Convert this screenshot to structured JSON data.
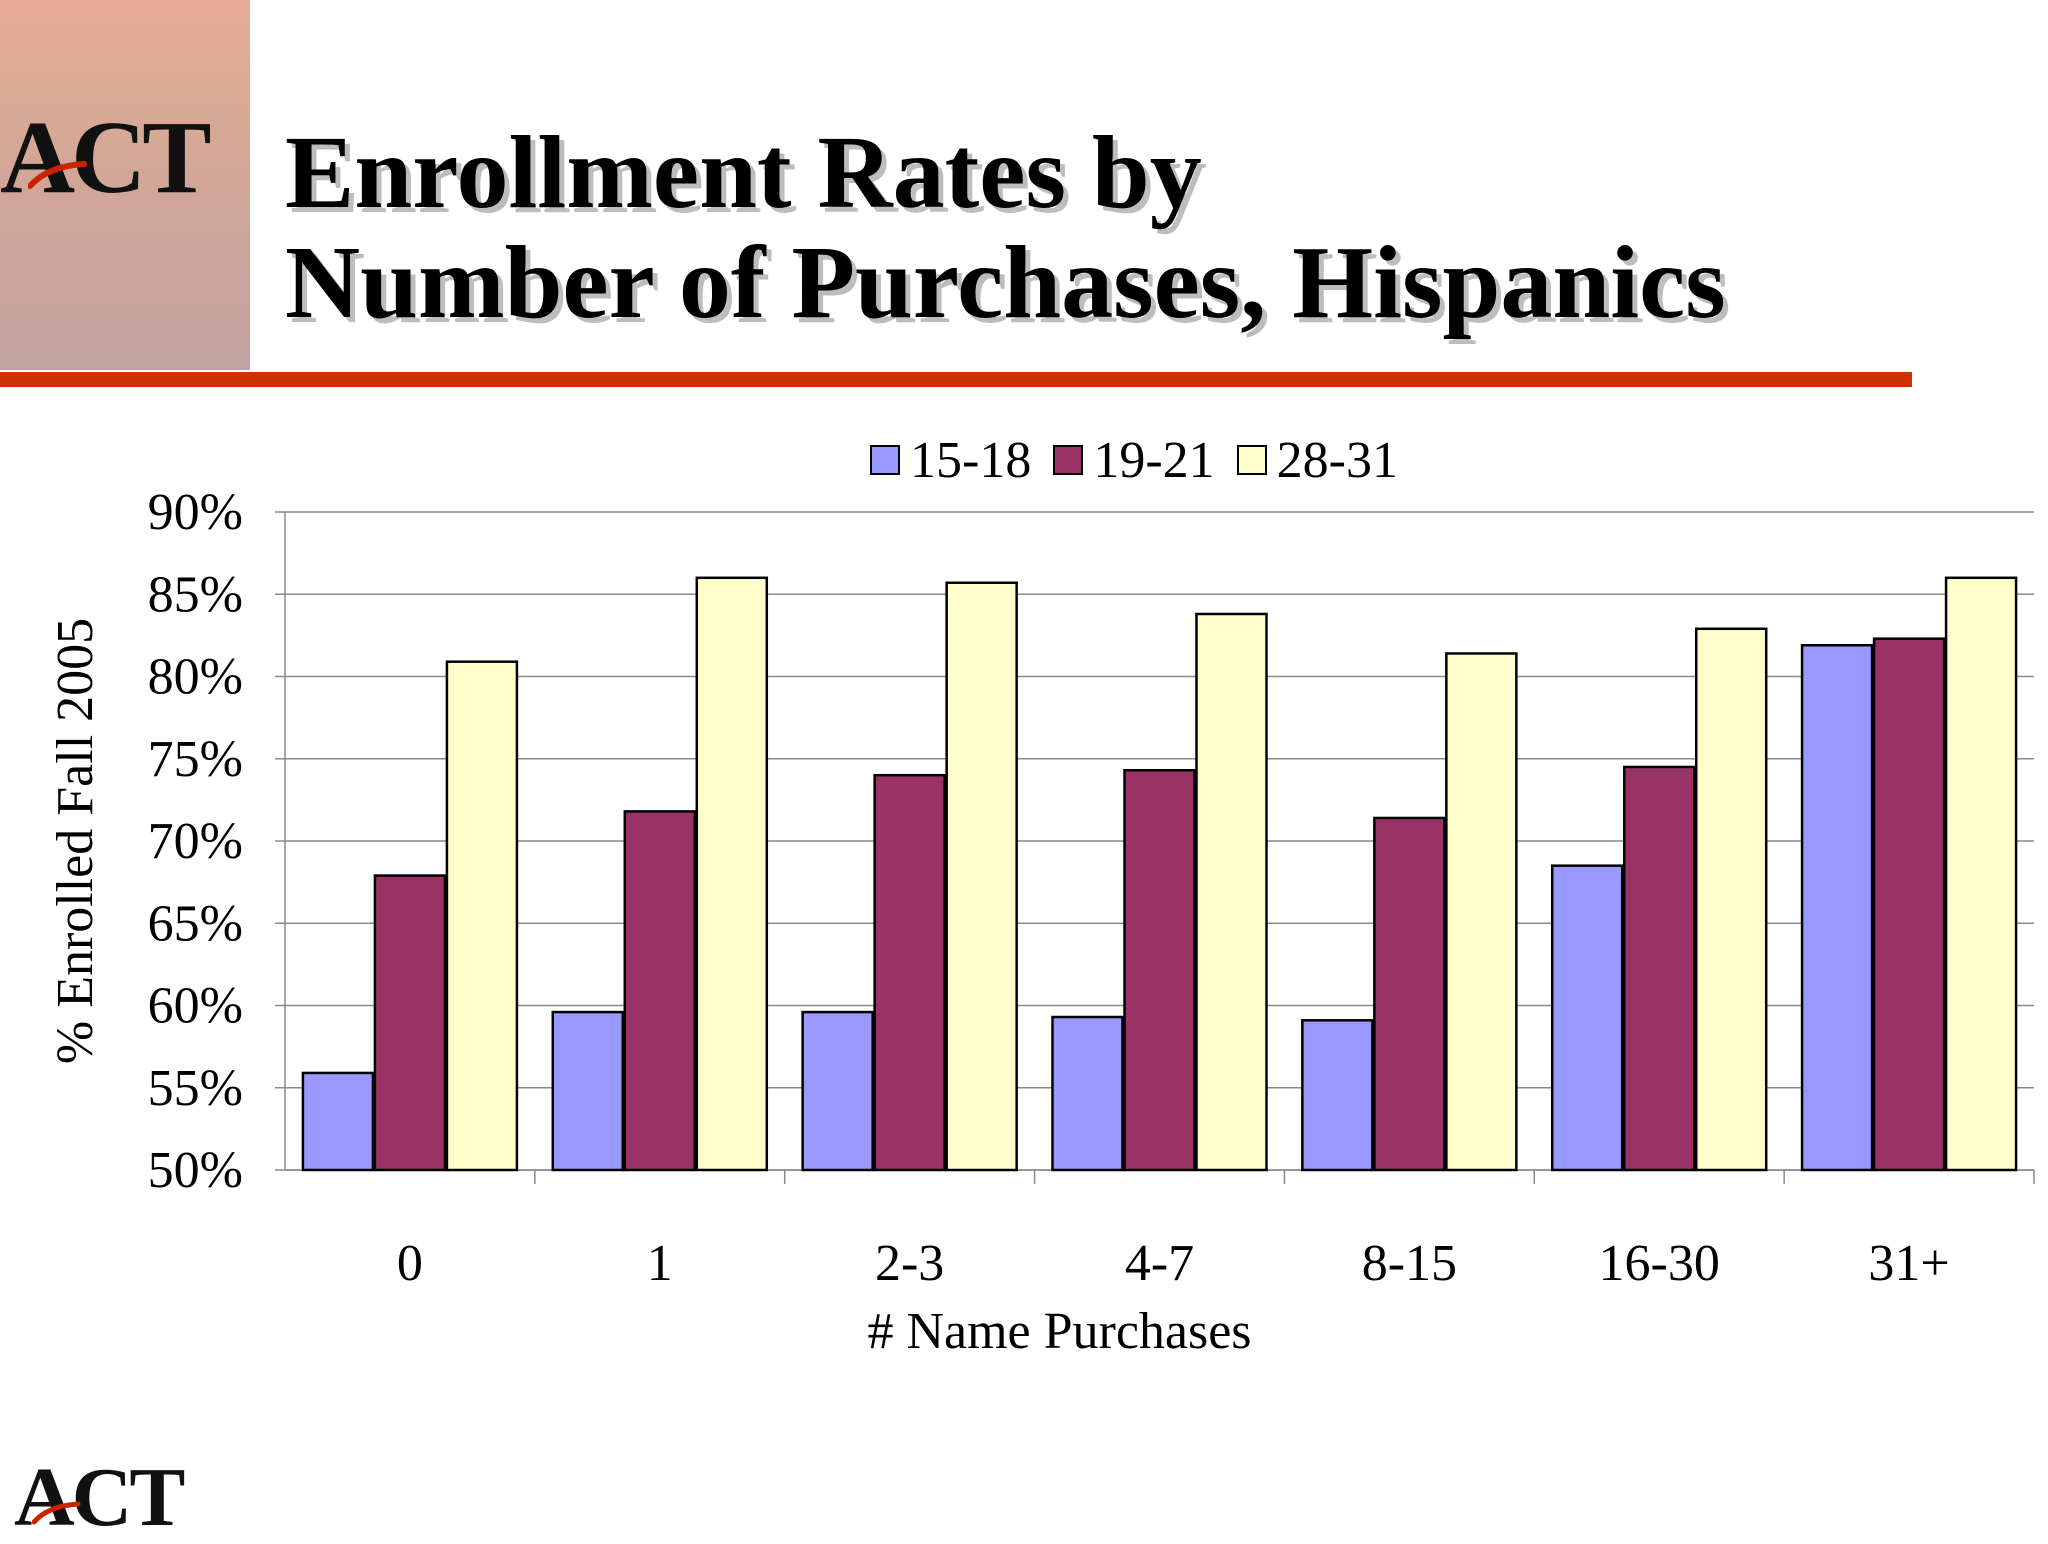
{
  "logo": {
    "text": "ACT",
    "accent_color": "#cc2200"
  },
  "title": {
    "line1": "Enrollment Rates by",
    "line2": "Number of Purchases, Hispanics"
  },
  "chart_data": {
    "type": "bar",
    "categories": [
      "0",
      "1",
      "2-3",
      "4-7",
      "8-15",
      "16-30",
      "31+"
    ],
    "series": [
      {
        "name": "15-18",
        "color": "#9999ff",
        "values": [
          55.9,
          59.6,
          59.6,
          59.3,
          59.1,
          68.5,
          81.9
        ]
      },
      {
        "name": "19-21",
        "color": "#993366",
        "values": [
          67.9,
          71.8,
          74.0,
          74.3,
          71.4,
          74.5,
          82.3
        ]
      },
      {
        "name": "28-31",
        "color": "#ffffcc",
        "values": [
          80.9,
          86.0,
          85.7,
          83.8,
          81.4,
          82.9,
          86.0
        ]
      }
    ],
    "ylim": [
      50,
      90
    ],
    "yticks": [
      "50%",
      "55%",
      "60%",
      "65%",
      "70%",
      "75%",
      "80%",
      "85%",
      "90%"
    ],
    "ylabel": "% Enrolled Fall 2005",
    "xlabel": "# Name Purchases",
    "legend": "top",
    "grid": true
  }
}
